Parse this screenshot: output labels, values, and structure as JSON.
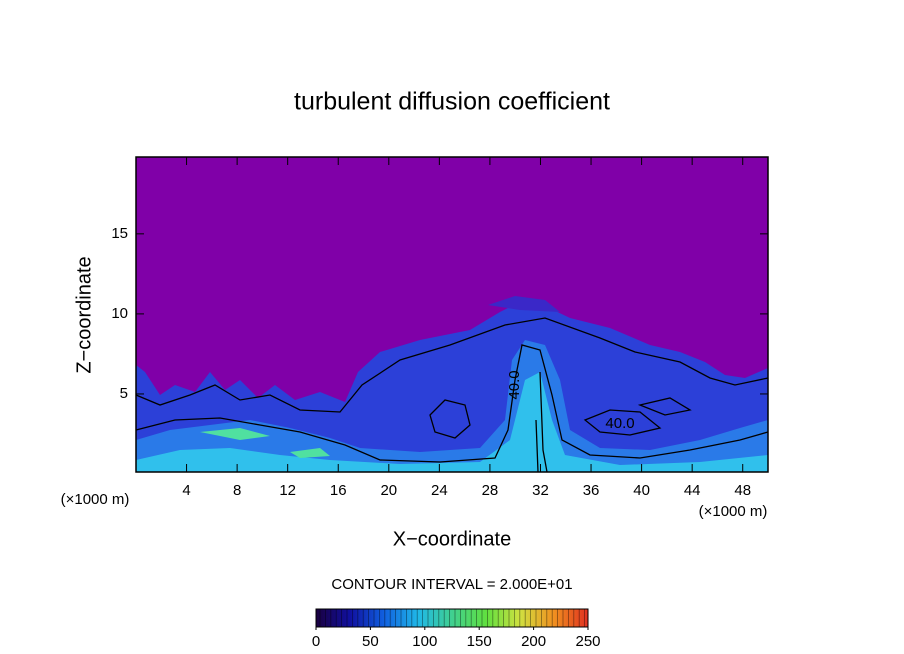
{
  "chart_data": {
    "type": "contour",
    "title": "turbulent diffusion coefficient",
    "x_label": "X−coordinate",
    "y_label": "Z−coordinate",
    "x_unit": "(×1000 m)",
    "y_unit": "(×1000 m)",
    "xlim": [
      0,
      50
    ],
    "ylim": [
      0.125,
      19.8
    ],
    "xticks": [
      4,
      8,
      12,
      16,
      20,
      24,
      28,
      32,
      36,
      40,
      44,
      48
    ],
    "yticks": [
      5,
      10,
      15
    ],
    "annotations": [
      "40.0",
      "40.0"
    ],
    "contour_interval": "CONTOUR INTERVAL = 2.000E+01",
    "colorbar": {
      "lim": [
        0,
        250
      ],
      "ticks": [
        0,
        50,
        100,
        150,
        200,
        250
      ],
      "colors": [
        "#1a0040",
        "#1010a0",
        "#1060e0",
        "#20b8e8",
        "#40d090",
        "#60e040",
        "#d0e040",
        "#f09020",
        "#e03020"
      ]
    }
  }
}
